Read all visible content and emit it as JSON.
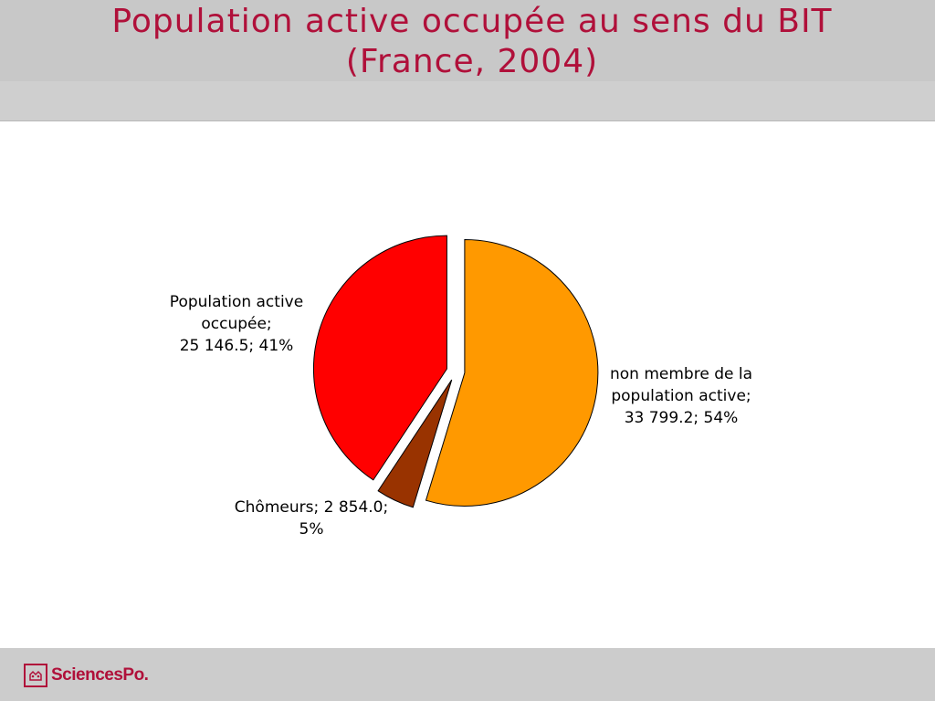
{
  "header": {
    "title_line1": "Population active occupée au sens du BIT",
    "title_line2": "(France, 2004)"
  },
  "footer": {
    "logo_text": "SciencesPo."
  },
  "colors": {
    "title": "#b0103a",
    "band": "#c8c8c8",
    "footer": "#cccccc",
    "logo": "#b0103a"
  },
  "chart_data": {
    "type": "pie",
    "title": "Population active occupée au sens du BIT (France, 2004)",
    "slices": [
      {
        "name": "non membre de la population active",
        "value": 33799.2,
        "percent": 54,
        "color": "#ff9900",
        "label_lines": [
          "non membre de la",
          "population active;",
          "33 799.2; 54%"
        ]
      },
      {
        "name": "Chômeurs",
        "value": 2854.0,
        "percent": 5,
        "color": "#993300",
        "label_lines": [
          "Chômeurs; 2 854.0;",
          "5%"
        ]
      },
      {
        "name": "Population active occupée",
        "value": 25146.5,
        "percent": 41,
        "color": "#ff0000",
        "label_lines": [
          "Population active",
          "occupée;",
          "25 146.5; 41%"
        ]
      }
    ],
    "exploded": true,
    "legend": "none"
  }
}
